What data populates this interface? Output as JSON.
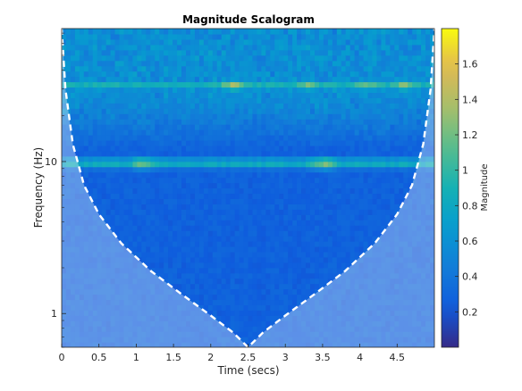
{
  "chart_data": {
    "type": "heatmap",
    "title": "Magnitude Scalogram",
    "xlabel": "Time (secs)",
    "ylabel": "Frequency (Hz)",
    "colorbar_label": "Magnitude",
    "xlim": [
      0,
      5
    ],
    "ylim": [
      0.6,
      75
    ],
    "y_scale": "log",
    "x_ticks": [
      0,
      0.5,
      1,
      1.5,
      2,
      2.5,
      3,
      3.5,
      4,
      4.5
    ],
    "x_tick_labels": [
      "0",
      "0.5",
      "1",
      "1.5",
      "2",
      "2.5",
      "3",
      "3.5",
      "4",
      "4.5"
    ],
    "y_ticks": [
      1,
      10
    ],
    "y_tick_labels": [
      "1",
      "10"
    ],
    "colorbar_ticks": [
      0.2,
      0.4,
      0.6,
      0.8,
      1,
      1.2,
      1.4,
      1.6
    ],
    "colorbar_tick_labels": [
      "0.2",
      "0.4",
      "0.6",
      "0.8",
      "1",
      "1.2",
      "1.4",
      "1.6"
    ],
    "colorbar_range": [
      0,
      1.8
    ],
    "colormap": "parula",
    "grid": false,
    "cone_of_influence": {
      "style": "dashed",
      "color": "#ffffff",
      "points": [
        {
          "t": 0.0,
          "f": 75
        },
        {
          "t": 0.05,
          "f": 30
        },
        {
          "t": 0.15,
          "f": 13
        },
        {
          "t": 0.3,
          "f": 7
        },
        {
          "t": 0.5,
          "f": 4.5
        },
        {
          "t": 0.8,
          "f": 2.9
        },
        {
          "t": 1.2,
          "f": 1.9
        },
        {
          "t": 1.6,
          "f": 1.35
        },
        {
          "t": 2.0,
          "f": 0.97
        },
        {
          "t": 2.3,
          "f": 0.75
        },
        {
          "t": 2.5,
          "f": 0.6
        },
        {
          "t": 2.7,
          "f": 0.75
        },
        {
          "t": 3.0,
          "f": 0.97
        },
        {
          "t": 3.4,
          "f": 1.35
        },
        {
          "t": 3.8,
          "f": 1.9
        },
        {
          "t": 4.2,
          "f": 2.9
        },
        {
          "t": 4.5,
          "f": 4.5
        },
        {
          "t": 4.7,
          "f": 7
        },
        {
          "t": 4.85,
          "f": 13
        },
        {
          "t": 4.95,
          "f": 30
        },
        {
          "t": 5.0,
          "f": 75
        }
      ]
    },
    "bands": [
      {
        "f": 9.8,
        "magnitude": 0.9,
        "peaks": [
          {
            "t": 1.1,
            "magnitude": 1.3
          },
          {
            "t": 3.5,
            "magnitude": 1.35
          }
        ]
      },
      {
        "f": 32,
        "magnitude": 0.95,
        "peaks": [
          {
            "t": 2.3,
            "magnitude": 1.45
          },
          {
            "t": 3.3,
            "magnitude": 1.3
          },
          {
            "t": 4.1,
            "magnitude": 1.25
          },
          {
            "t": 4.6,
            "magnitude": 1.3
          }
        ]
      }
    ]
  }
}
